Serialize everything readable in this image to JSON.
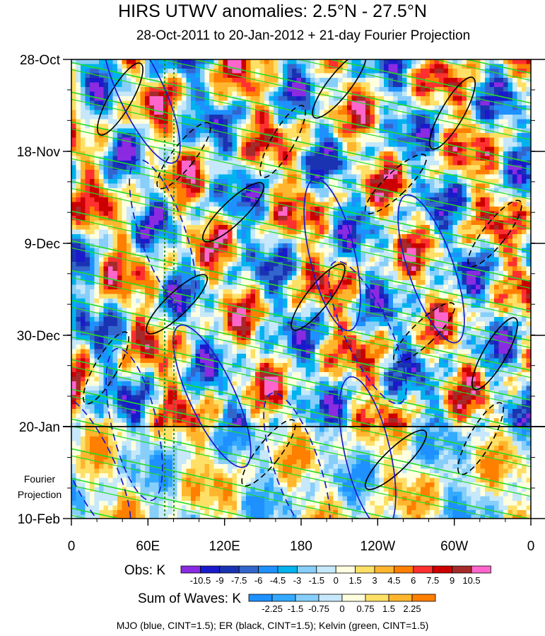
{
  "chart_data": {
    "type": "heatmap",
    "title": "HIRS UTWV anomalies: 2.5°N - 27.5°N",
    "subtitle": "28-Oct-2011 to 20-Jan-2012 + 21-day Fourier Projection",
    "x_ticks": [
      "0",
      "60E",
      "120E",
      "180",
      "120W",
      "60W",
      "0"
    ],
    "y_ticks": [
      "28-Oct",
      "18-Nov",
      "9-Dec",
      "30-Dec",
      "20-Jan",
      "10-Feb"
    ],
    "projection_label": [
      "Fourier",
      "Projection"
    ],
    "obs_legend": {
      "label": "Obs: K",
      "levels": [
        "-10.5",
        "-9",
        "-7.5",
        "-6",
        "-4.5",
        "-3",
        "-1.5",
        "0",
        "1.5",
        "3",
        "4.5",
        "6",
        "7.5",
        "9",
        "10.5"
      ],
      "colors": [
        "#8a2be2",
        "#1a1acc",
        "#1a33b3",
        "#3366cc",
        "#1e90ff",
        "#00b2ee",
        "#87cefa",
        "#c6e8fa",
        "#ffffe0",
        "#ffe066",
        "#ffb62e",
        "#ff7f00",
        "#ff3030",
        "#cc0000",
        "#a52a2a",
        "#ff66cc"
      ]
    },
    "waves_legend": {
      "label": "Sum of Waves: K",
      "levels": [
        "-2.25",
        "-1.5",
        "-0.75",
        "0",
        "0.75",
        "1.5",
        "2.25"
      ],
      "colors": [
        "#1e90ff",
        "#33aaff",
        "#87cefa",
        "#c6e8fa",
        "#ffffe0",
        "#ffe066",
        "#ffb62e",
        "#ff7f00"
      ]
    },
    "contours": [
      {
        "name": "MJO",
        "color": "blue"
      },
      {
        "name": "ER",
        "color": "black"
      },
      {
        "name": "Kelvin",
        "color": "green"
      }
    ]
  },
  "caption": "MJO (blue, CINT=1.5); ER (black, CINT=1.5); Kelvin (green, CINT=1.5)"
}
